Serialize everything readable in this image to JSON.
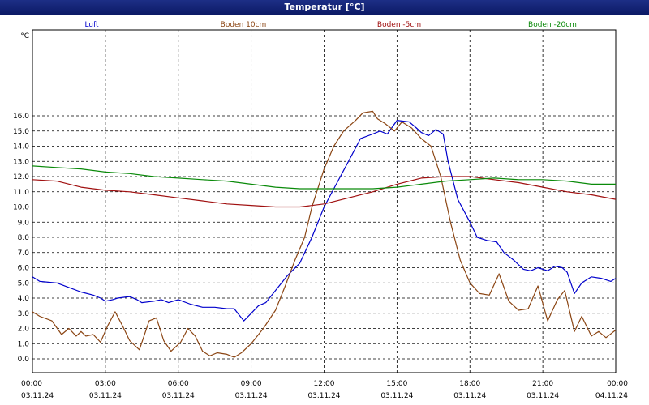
{
  "window": {
    "title": "Temperatur [°C]"
  },
  "chart_data": {
    "type": "line",
    "title": "Temperatur [°C]",
    "ylabel": "°C",
    "ylim": [
      0,
      16.9
    ],
    "yticks": [
      "0.0",
      "1.0",
      "2.0",
      "3.0",
      "4.0",
      "5.0",
      "6.0",
      "7.0",
      "8.0",
      "9.0",
      "10.0",
      "11.0",
      "12.0",
      "13.0",
      "14.0",
      "15.0",
      "16.0"
    ],
    "xlim": [
      0,
      24
    ],
    "xticks": [
      {
        "time": "00:00",
        "date": "03.11.24"
      },
      {
        "time": "03:00",
        "date": "03.11.24"
      },
      {
        "time": "06:00",
        "date": "03.11.24"
      },
      {
        "time": "09:00",
        "date": "03.11.24"
      },
      {
        "time": "12:00",
        "date": "03.11.24"
      },
      {
        "time": "15:00",
        "date": "03.11.24"
      },
      {
        "time": "18:00",
        "date": "03.11.24"
      },
      {
        "time": "21:00",
        "date": "03.11.24"
      },
      {
        "time": "00:00",
        "date": "04.11.24"
      }
    ],
    "grid": true,
    "legend_position": "top",
    "series": [
      {
        "name": "Luft",
        "color": "#0000cc",
        "points": [
          [
            0,
            5.4
          ],
          [
            0.3,
            5.1
          ],
          [
            1,
            5.0
          ],
          [
            1.5,
            4.7
          ],
          [
            2,
            4.4
          ],
          [
            2.5,
            4.2
          ],
          [
            2.8,
            4.0
          ],
          [
            3,
            3.8
          ],
          [
            3.3,
            3.9
          ],
          [
            3.5,
            4.0
          ],
          [
            4,
            4.1
          ],
          [
            4.3,
            3.9
          ],
          [
            4.5,
            3.7
          ],
          [
            5,
            3.8
          ],
          [
            5.3,
            3.9
          ],
          [
            5.6,
            3.7
          ],
          [
            6,
            3.9
          ],
          [
            6.5,
            3.6
          ],
          [
            7,
            3.4
          ],
          [
            7.5,
            3.4
          ],
          [
            8,
            3.3
          ],
          [
            8.3,
            3.3
          ],
          [
            8.5,
            2.9
          ],
          [
            8.7,
            2.5
          ],
          [
            9,
            3.0
          ],
          [
            9.3,
            3.5
          ],
          [
            9.6,
            3.7
          ],
          [
            10,
            4.5
          ],
          [
            10.5,
            5.5
          ],
          [
            11,
            6.3
          ],
          [
            11.5,
            8.0
          ],
          [
            12,
            10.0
          ],
          [
            12.5,
            11.5
          ],
          [
            13,
            13.0
          ],
          [
            13.5,
            14.5
          ],
          [
            14,
            14.8
          ],
          [
            14.3,
            15.0
          ],
          [
            14.6,
            14.8
          ],
          [
            15,
            15.7
          ],
          [
            15.5,
            15.6
          ],
          [
            15.8,
            15.2
          ],
          [
            16,
            14.9
          ],
          [
            16.3,
            14.7
          ],
          [
            16.6,
            15.1
          ],
          [
            16.9,
            14.8
          ],
          [
            17.1,
            13.0
          ],
          [
            17.5,
            10.5
          ],
          [
            18,
            9.0
          ],
          [
            18.3,
            8.0
          ],
          [
            18.7,
            7.8
          ],
          [
            19.1,
            7.7
          ],
          [
            19.4,
            7.0
          ],
          [
            19.8,
            6.5
          ],
          [
            20.2,
            5.9
          ],
          [
            20.5,
            5.8
          ],
          [
            20.8,
            6.0
          ],
          [
            21.2,
            5.8
          ],
          [
            21.5,
            6.1
          ],
          [
            21.8,
            6.0
          ],
          [
            22,
            5.7
          ],
          [
            22.3,
            4.3
          ],
          [
            22.6,
            5.0
          ],
          [
            23,
            5.4
          ],
          [
            23.4,
            5.3
          ],
          [
            23.8,
            5.1
          ],
          [
            24,
            5.3
          ]
        ]
      },
      {
        "name": "Boden 10cm",
        "color": "#8b4513",
        "points": [
          [
            0,
            3.1
          ],
          [
            0.3,
            2.8
          ],
          [
            0.8,
            2.5
          ],
          [
            1.2,
            1.6
          ],
          [
            1.5,
            2.0
          ],
          [
            1.8,
            1.5
          ],
          [
            2,
            1.8
          ],
          [
            2.2,
            1.5
          ],
          [
            2.5,
            1.6
          ],
          [
            2.8,
            1.1
          ],
          [
            3.1,
            2.2
          ],
          [
            3.4,
            3.1
          ],
          [
            3.7,
            2.2
          ],
          [
            4,
            1.2
          ],
          [
            4.4,
            0.6
          ],
          [
            4.8,
            2.5
          ],
          [
            5.1,
            2.7
          ],
          [
            5.4,
            1.2
          ],
          [
            5.7,
            0.5
          ],
          [
            6.1,
            1.1
          ],
          [
            6.4,
            2.0
          ],
          [
            6.7,
            1.5
          ],
          [
            7,
            0.5
          ],
          [
            7.3,
            0.2
          ],
          [
            7.6,
            0.4
          ],
          [
            8,
            0.3
          ],
          [
            8.3,
            0.1
          ],
          [
            8.6,
            0.4
          ],
          [
            9,
            1.0
          ],
          [
            9.5,
            2.0
          ],
          [
            10,
            3.2
          ],
          [
            10.4,
            4.8
          ],
          [
            10.8,
            6.5
          ],
          [
            11.2,
            8.0
          ],
          [
            11.5,
            10.0
          ],
          [
            12,
            12.5
          ],
          [
            12.4,
            14.0
          ],
          [
            12.8,
            15.0
          ],
          [
            13.3,
            15.7
          ],
          [
            13.6,
            16.2
          ],
          [
            14,
            16.3
          ],
          [
            14.2,
            15.8
          ],
          [
            14.5,
            15.5
          ],
          [
            14.9,
            15.0
          ],
          [
            15.2,
            15.6
          ],
          [
            15.6,
            15.2
          ],
          [
            16,
            14.5
          ],
          [
            16.4,
            14.0
          ],
          [
            16.8,
            12.0
          ],
          [
            17.2,
            9.0
          ],
          [
            17.6,
            6.5
          ],
          [
            18,
            5.0
          ],
          [
            18.4,
            4.3
          ],
          [
            18.8,
            4.2
          ],
          [
            19.2,
            5.6
          ],
          [
            19.6,
            3.8
          ],
          [
            20,
            3.2
          ],
          [
            20.4,
            3.3
          ],
          [
            20.8,
            4.8
          ],
          [
            21.2,
            2.5
          ],
          [
            21.6,
            3.9
          ],
          [
            21.9,
            4.5
          ],
          [
            22.3,
            1.8
          ],
          [
            22.6,
            2.8
          ],
          [
            23,
            1.5
          ],
          [
            23.3,
            1.8
          ],
          [
            23.6,
            1.4
          ],
          [
            24,
            1.9
          ]
        ]
      },
      {
        "name": "Boden -5cm",
        "color": "#a01010",
        "points": [
          [
            0,
            11.8
          ],
          [
            1,
            11.7
          ],
          [
            2,
            11.3
          ],
          [
            3,
            11.1
          ],
          [
            4,
            11.0
          ],
          [
            5,
            10.8
          ],
          [
            6,
            10.6
          ],
          [
            7,
            10.4
          ],
          [
            8,
            10.2
          ],
          [
            9,
            10.1
          ],
          [
            10,
            10.0
          ],
          [
            11,
            10.0
          ],
          [
            12,
            10.2
          ],
          [
            13,
            10.6
          ],
          [
            14,
            11.0
          ],
          [
            15,
            11.5
          ],
          [
            16,
            11.9
          ],
          [
            17,
            12.0
          ],
          [
            18,
            12.0
          ],
          [
            19,
            11.8
          ],
          [
            20,
            11.6
          ],
          [
            21,
            11.3
          ],
          [
            22,
            11.0
          ],
          [
            23,
            10.8
          ],
          [
            24,
            10.5
          ]
        ]
      },
      {
        "name": "Boden -20cm",
        "color": "#0a8a0a",
        "points": [
          [
            0,
            12.7
          ],
          [
            1,
            12.6
          ],
          [
            2,
            12.5
          ],
          [
            3,
            12.3
          ],
          [
            4,
            12.2
          ],
          [
            5,
            12.0
          ],
          [
            6,
            11.9
          ],
          [
            7,
            11.8
          ],
          [
            8,
            11.7
          ],
          [
            9,
            11.5
          ],
          [
            10,
            11.3
          ],
          [
            11,
            11.2
          ],
          [
            12,
            11.2
          ],
          [
            13,
            11.2
          ],
          [
            14,
            11.2
          ],
          [
            15,
            11.3
          ],
          [
            16,
            11.5
          ],
          [
            17,
            11.7
          ],
          [
            18,
            11.8
          ],
          [
            19,
            11.9
          ],
          [
            20,
            11.8
          ],
          [
            21,
            11.8
          ],
          [
            22,
            11.7
          ],
          [
            23,
            11.5
          ],
          [
            24,
            11.5
          ]
        ]
      }
    ]
  }
}
